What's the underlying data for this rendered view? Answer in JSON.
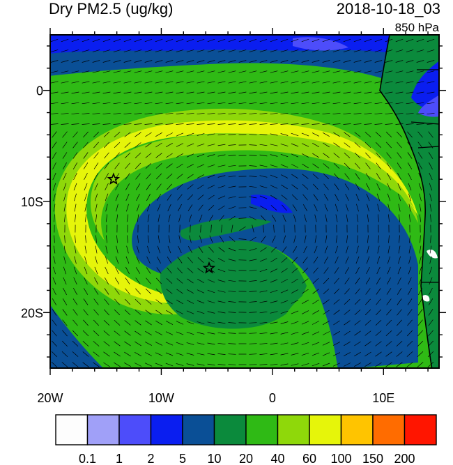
{
  "title": "Dry PM2.5 (ug/kg)",
  "timestamp": "2018-10-18_03",
  "level": "850 hPa",
  "map": {
    "lon_range": [
      -20,
      15
    ],
    "lat_range": [
      -25,
      5
    ],
    "lon_ticks": [
      {
        "lon": -20,
        "label": "20W"
      },
      {
        "lon": -10,
        "label": "10W"
      },
      {
        "lon": 0,
        "label": "0"
      },
      {
        "lon": 10,
        "label": "10E"
      }
    ],
    "lat_ticks": [
      {
        "lat": 0,
        "label": "0"
      },
      {
        "lat": -10,
        "label": "10S"
      },
      {
        "lat": -20,
        "label": "20S"
      }
    ],
    "markers": [
      {
        "name": "star-marker-1",
        "lon": -14.3,
        "lat": -8.0
      },
      {
        "name": "star-marker-2",
        "lon": -5.7,
        "lat": -16.0
      }
    ]
  },
  "colorbar": {
    "labels": [
      "0.1",
      "1",
      "2",
      "5",
      "10",
      "20",
      "40",
      "60",
      "100",
      "150",
      "200"
    ],
    "colors": [
      "#fdfdfd",
      "#a0a0f8",
      "#4d4dfa",
      "#0a1ef0",
      "#0a4f96",
      "#0b8a3c",
      "#2fba15",
      "#8fd80a",
      "#e6f50a",
      "#ffc400",
      "#ff6c00",
      "#ff1500"
    ]
  }
}
